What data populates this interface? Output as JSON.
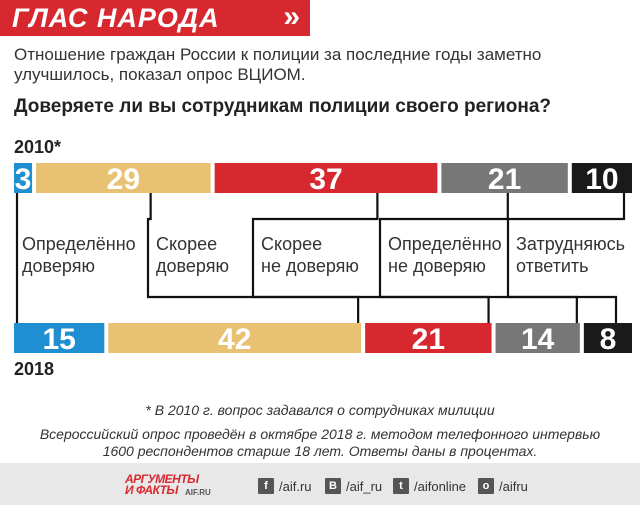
{
  "header": {
    "title": "ГЛАС НАРОДА",
    "arrows": "»"
  },
  "subtitle": "Отношение граждан России к полиции за последние годы заметно улучшилось, показал опрос ВЦИОМ.",
  "question": "Доверяете ли вы сотрудникам полиции своего региона?",
  "chart_data": {
    "type": "bar",
    "title": "Доверяете ли вы сотрудникам полиции своего региона?",
    "categories": [
      "Определённо доверяю",
      "Скорее доверяю",
      "Скорее не доверяю",
      "Определённо не доверяю",
      "Затрудняюсь ответить"
    ],
    "label_lines": [
      [
        "Определённо",
        "доверяю"
      ],
      [
        "Скорее",
        "доверяю"
      ],
      [
        "Скорее",
        "не доверяю"
      ],
      [
        "Определённо",
        "не доверяю"
      ],
      [
        "Затрудняюсь",
        "ответить"
      ]
    ],
    "series": [
      {
        "name": "2010*",
        "values": [
          3,
          29,
          37,
          21,
          10
        ]
      },
      {
        "name": "2018",
        "values": [
          15,
          42,
          21,
          14,
          8
        ]
      }
    ],
    "colors": [
      "#1f8fd1",
      "#e8c173",
      "#d7282f",
      "#777777",
      "#1a1a1a"
    ],
    "unit": "percent"
  },
  "notes": {
    "asterisk": "* В 2010 г. вопрос задавался о сотрудниках милиции",
    "method_line1": "Всероссийский опрос проведён в октябре 2018 г. методом телефонного интервью",
    "method_line2": "1600 респондентов старше 18 лет. Ответы даны в процентах."
  },
  "footer": {
    "logo_line1": "АРГУМЕНТЫ",
    "logo_line2": "И ФАКТЫ",
    "logo_site": "AIF.RU",
    "social": [
      {
        "icon": "facebook-icon",
        "glyph": "f",
        "text": "/aif.ru"
      },
      {
        "icon": "vk-icon",
        "glyph": "В",
        "text": "/aif_ru"
      },
      {
        "icon": "twitter-icon",
        "glyph": "t",
        "text": "/aifonline"
      },
      {
        "icon": "odnoklassniki-icon",
        "glyph": "о",
        "text": "/aifru"
      }
    ]
  }
}
